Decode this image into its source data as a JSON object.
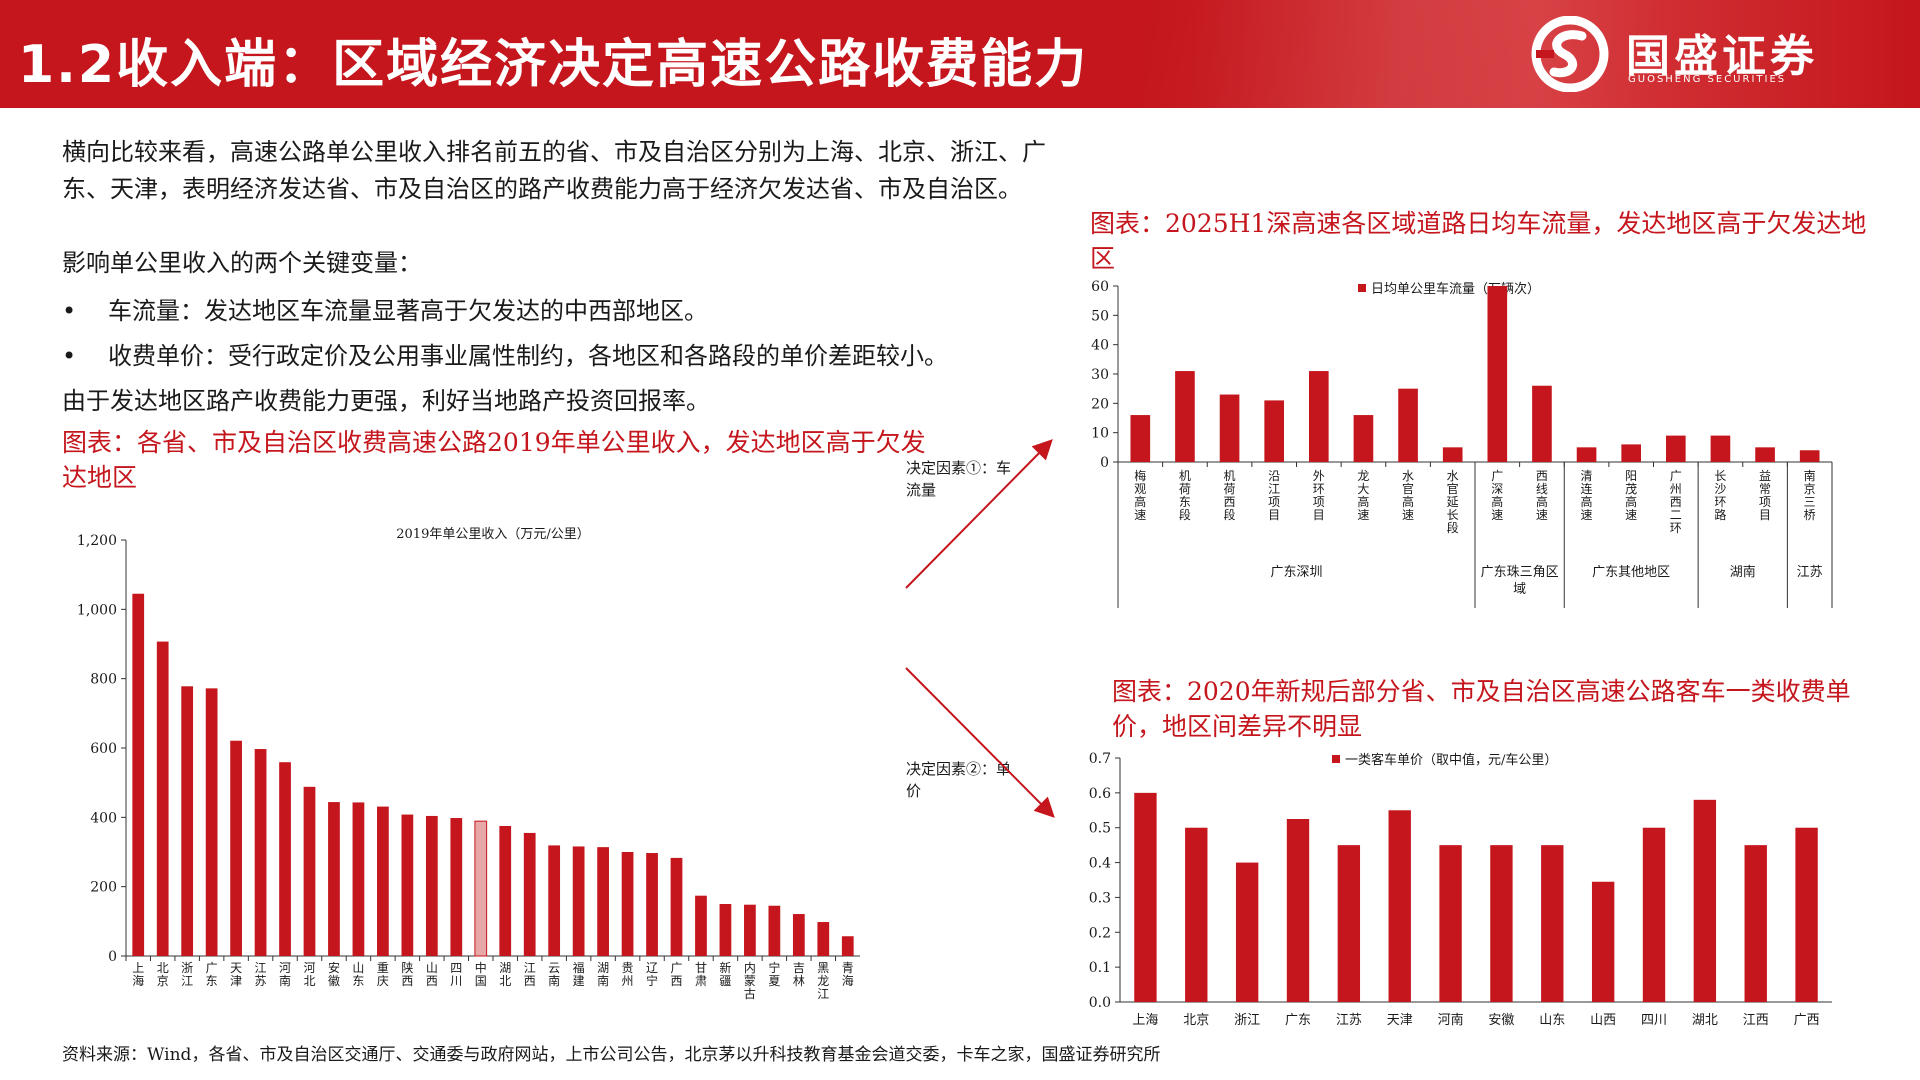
{
  "header": {
    "title": "1.2收入端：区域经济决定高速公路收费能力",
    "logo_text": "国盛证券",
    "logo_sub": "GUOSHENG SECURITIES",
    "brand_color": "#c4161c"
  },
  "body": {
    "para1": "横向比较来看，高速公路单公里收入排名前五的省、市及自治区分别为上海、北京、浙江、广东、天津，表明经济发达省、市及自治区的路产收费能力高于经济欠发达省、市及自治区。",
    "para2": "影响单公里收入的两个关键变量：",
    "bullet1": "车流量：发达地区车流量显著高于欠发达的中西部地区。",
    "bullet2": "收费单价：受行政定价及公用事业属性制约，各地区和各路段的单价差距较小。",
    "para3": "由于发达地区路产收费能力更强，利好当地路产投资回报率。"
  },
  "captions": {
    "left": "图表：各省、市及自治区收费高速公路2019年单公里收入，发达地区高于欠发达地区",
    "right_top": "图表：2025H1深高速各区域道路日均车流量，发达地区高于欠发达地区",
    "right_bottom": "图表：2020年新规后部分省、市及自治区高速公路客车一类收费单价，地区间差异不明显"
  },
  "notes": {
    "factor1": "决定因素①：车流量",
    "factor2": "决定因素②：单价"
  },
  "source": "资料来源：Wind，各省、市及自治区交通厅、交通委与政府网站，上市公司公告，北京茅以升科技教育基金会道交委，卡车之家，国盛证券研究所",
  "chart_data": [
    {
      "type": "bar",
      "title": "2019年单公里收入（万元/公里）",
      "categories": [
        "上海",
        "北京",
        "浙江",
        "广东",
        "天津",
        "江苏",
        "河南",
        "河北",
        "安徽",
        "山东",
        "重庆",
        "陕西",
        "山西",
        "四川",
        "中国",
        "湖北",
        "江西",
        "云南",
        "福建",
        "湖南",
        "贵州",
        "辽宁",
        "广西",
        "甘肃",
        "新疆",
        "内蒙古",
        "宁夏",
        "吉林",
        "黑龙江",
        "青海"
      ],
      "values": [
        1045,
        907,
        778,
        772,
        621,
        597,
        559,
        488,
        444,
        443,
        431,
        408,
        404,
        398,
        389,
        375,
        355,
        319,
        316,
        314,
        300,
        297,
        283,
        174,
        150,
        148,
        145,
        121,
        98,
        57
      ],
      "highlight": [
        "中国"
      ],
      "ylim": [
        0,
        1200
      ],
      "yticks": [
        "0",
        "200",
        "400",
        "600",
        "800",
        "1,000",
        "1,200"
      ],
      "color": "#c4161c",
      "highlight_color": "#e8a8a8"
    },
    {
      "type": "bar",
      "title": "日均单公里车流量（万辆次）",
      "categories": [
        "梅观高速",
        "机荷东段",
        "机荷西段",
        "沿江项目",
        "外环项目",
        "龙大高速",
        "水官高速",
        "水官延长段",
        "广深高速",
        "西线高速",
        "清连高速",
        "阳茂高速",
        "广州西二环",
        "长沙环路",
        "益常项目",
        "南京三桥"
      ],
      "values": [
        16,
        31,
        23,
        21,
        31,
        16,
        25,
        5,
        60,
        26,
        5,
        6,
        9,
        9,
        5,
        4
      ],
      "groups": [
        {
          "name": "广东深圳",
          "count": 8
        },
        {
          "name": "广东珠三角区域",
          "count": 2
        },
        {
          "name": "广东其他地区",
          "count": 3
        },
        {
          "name": "湖南",
          "count": 2
        },
        {
          "name": "江苏",
          "count": 1
        }
      ],
      "ylim": [
        0,
        60
      ],
      "yticks": [
        "0",
        "10",
        "20",
        "30",
        "40",
        "50",
        "60"
      ],
      "color": "#c4161c"
    },
    {
      "type": "bar",
      "title": "一类客车单价（取中值，元/车公里）",
      "categories": [
        "上海",
        "北京",
        "浙江",
        "广东",
        "江苏",
        "天津",
        "河南",
        "安徽",
        "山东",
        "山西",
        "四川",
        "湖北",
        "江西",
        "广西"
      ],
      "values": [
        0.6,
        0.5,
        0.4,
        0.525,
        0.45,
        0.55,
        0.45,
        0.45,
        0.45,
        0.345,
        0.5,
        0.58,
        0.45,
        0.5
      ],
      "ylim": [
        0,
        0.7
      ],
      "yticks": [
        "0.0",
        "0.1",
        "0.2",
        "0.3",
        "0.4",
        "0.5",
        "0.6",
        "0.7"
      ],
      "color": "#c4161c"
    }
  ]
}
